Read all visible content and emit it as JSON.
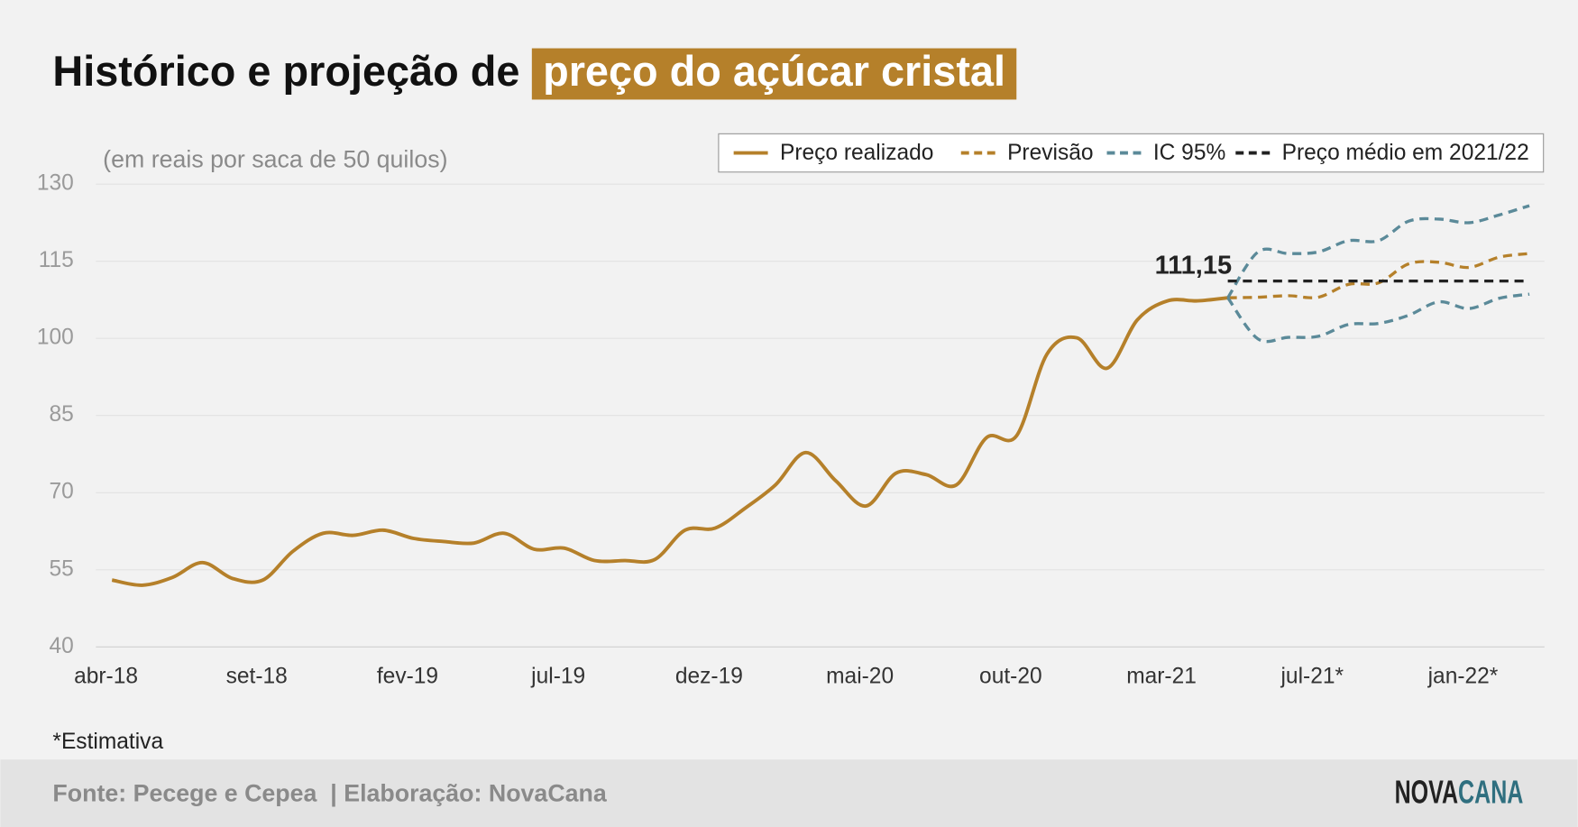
{
  "chart_data": {
    "type": "line",
    "title": "Histórico e projeção de",
    "title_highlight": "preço do açúcar cristal",
    "subtitle": "(em reais por saca de 50 quilos)",
    "footnote": "*Estimativa",
    "source": "Fonte: Pecege e Cepea  | Elaboração: NovaCana",
    "logo": [
      "NOVA",
      "CANA"
    ],
    "categories": [
      "abr-18",
      null,
      null,
      null,
      null,
      "set-18",
      null,
      null,
      null,
      null,
      "fev-19",
      null,
      null,
      null,
      null,
      "jul-19",
      null,
      null,
      null,
      null,
      "dez-19",
      null,
      null,
      null,
      null,
      "mai-20",
      null,
      null,
      null,
      null,
      "out-20",
      null,
      null,
      null,
      null,
      "mar-21",
      null,
      null,
      null,
      null,
      "jul-21*",
      null,
      null,
      null,
      null,
      "jan-22*",
      null,
      null
    ],
    "ylim": [
      40,
      130
    ],
    "yticks": [
      40,
      55,
      70,
      85,
      100,
      115,
      130
    ],
    "grid": true,
    "legend": "top-right",
    "series": [
      {
        "name": "Preço realizado",
        "color": "#b5802a",
        "dash": false,
        "values": [
          53,
          52,
          53.5,
          56.4,
          53.3,
          53,
          58.6,
          62.1,
          61.7,
          62.7,
          61.1,
          60.5,
          60.2,
          62.1,
          59,
          59.2,
          56.8,
          56.8,
          57,
          62.7,
          63.1,
          67,
          71.5,
          77.8,
          72.3,
          67.4,
          73.8,
          73.5,
          71.5,
          80.7,
          81.1,
          96.9,
          100.1,
          94.2,
          103.6,
          107.3,
          107.3,
          107.9,
          null,
          null,
          null,
          null,
          null,
          null,
          null,
          null,
          null,
          null
        ]
      },
      {
        "name": "Previsão",
        "color": "#b5802a",
        "dash": true,
        "values": [
          null,
          null,
          null,
          null,
          null,
          null,
          null,
          null,
          null,
          null,
          null,
          null,
          null,
          null,
          null,
          null,
          null,
          null,
          null,
          null,
          null,
          null,
          null,
          null,
          null,
          null,
          null,
          null,
          null,
          null,
          null,
          null,
          null,
          null,
          null,
          null,
          null,
          107.9,
          108,
          108.3,
          108,
          110.5,
          110.8,
          114.5,
          114.8,
          113.8,
          115.8,
          116.5
        ]
      },
      {
        "name": "IC 95%",
        "color": "#5b8a99",
        "dash": true,
        "upper": [
          null,
          null,
          null,
          null,
          null,
          null,
          null,
          null,
          null,
          null,
          null,
          null,
          null,
          null,
          null,
          null,
          null,
          null,
          null,
          null,
          null,
          null,
          null,
          null,
          null,
          null,
          null,
          null,
          null,
          null,
          null,
          null,
          null,
          null,
          null,
          null,
          null,
          107.9,
          116.8,
          116.5,
          116.8,
          119,
          119,
          122.8,
          123.2,
          122.5,
          124,
          125.8
        ],
        "lower": [
          null,
          null,
          null,
          null,
          null,
          null,
          null,
          null,
          null,
          null,
          null,
          null,
          null,
          null,
          null,
          null,
          null,
          null,
          null,
          null,
          null,
          null,
          null,
          null,
          null,
          null,
          null,
          null,
          null,
          null,
          null,
          null,
          null,
          null,
          null,
          null,
          null,
          107.9,
          99.9,
          100.2,
          100.4,
          102.7,
          102.9,
          104.5,
          107.1,
          105.8,
          107.8,
          108.6
        ]
      },
      {
        "name": "Preço médio em 2021/22",
        "color": "#222222",
        "dash": true,
        "straight": true,
        "values": [
          null,
          null,
          null,
          null,
          null,
          null,
          null,
          null,
          null,
          null,
          null,
          null,
          null,
          null,
          null,
          null,
          null,
          null,
          null,
          null,
          null,
          null,
          null,
          null,
          null,
          null,
          null,
          null,
          null,
          null,
          null,
          null,
          null,
          null,
          null,
          null,
          null,
          111.15,
          111.15,
          111.15,
          111.15,
          111.15,
          111.15,
          111.15,
          111.15,
          111.15,
          111.15,
          111.15
        ],
        "value_labels": [
          null,
          null,
          null,
          null,
          null,
          null,
          null,
          null,
          null,
          null,
          null,
          null,
          null,
          null,
          null,
          null,
          null,
          null,
          null,
          null,
          null,
          null,
          null,
          null,
          null,
          null,
          null,
          null,
          null,
          null,
          null,
          null,
          null,
          null,
          null,
          null,
          null,
          "111,15",
          null,
          null,
          null,
          null,
          null,
          null,
          null,
          null,
          null,
          null
        ]
      }
    ]
  }
}
